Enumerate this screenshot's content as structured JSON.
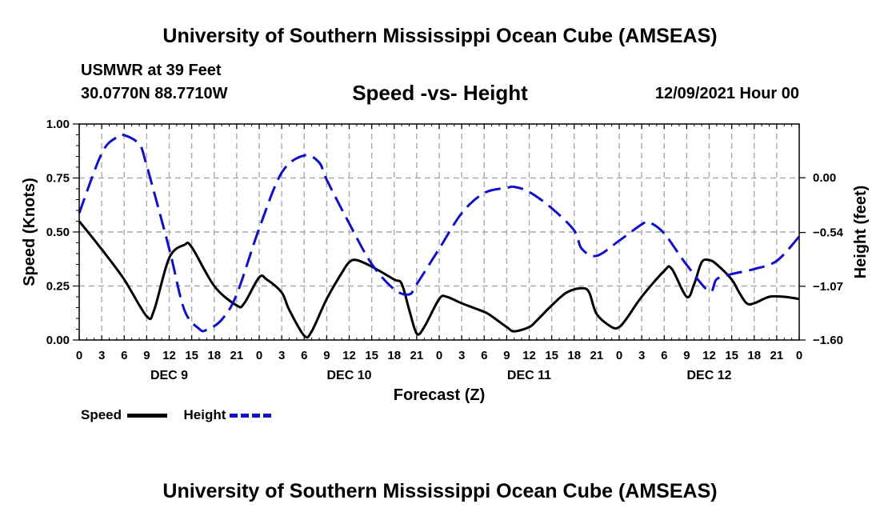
{
  "header": {
    "title_top": "University of Southern Mississippi Ocean Cube (AMSEAS)",
    "station": "USMWR at 39 Feet",
    "location": "30.0770N  88.7710W",
    "chart_title": "Speed -vs- Height",
    "datetime": "12/09/2021 Hour 00",
    "title_bottom": "University of Southern Mississippi Ocean Cube (AMSEAS)"
  },
  "legend": {
    "speed_label": "Speed",
    "height_label": "Height"
  },
  "colors": {
    "speed": "#000000",
    "height": "#1010c8",
    "grid": "#a9a9a9"
  },
  "chart_data": {
    "type": "line",
    "title": "Speed -vs- Height",
    "xlabel": "Forecast (Z)",
    "ylabel": "Speed (Knots)",
    "y2label": "Height (feet)",
    "xlim": [
      0,
      96
    ],
    "ylim": [
      0,
      1
    ],
    "y2lim": [
      -1.6,
      0.53
    ],
    "x_ticks": [
      0,
      3,
      6,
      9,
      12,
      15,
      18,
      21,
      24,
      27,
      30,
      33,
      36,
      39,
      42,
      45,
      48,
      51,
      54,
      57,
      60,
      63,
      66,
      69,
      72,
      75,
      78,
      81,
      84,
      87,
      90,
      93,
      96
    ],
    "x_tick_labels": [
      "0",
      "3",
      "6",
      "9",
      "12",
      "15",
      "18",
      "21",
      "0",
      "3",
      "6",
      "9",
      "12",
      "15",
      "18",
      "21",
      "0",
      "3",
      "6",
      "9",
      "12",
      "15",
      "18",
      "21",
      "0",
      "3",
      "6",
      "9",
      "12",
      "15",
      "18",
      "21",
      "0"
    ],
    "day_labels": [
      {
        "hour": 12,
        "label": "DEC 9"
      },
      {
        "hour": 36,
        "label": "DEC 10"
      },
      {
        "hour": 60,
        "label": "DEC 11"
      },
      {
        "hour": 84,
        "label": "DEC 12"
      }
    ],
    "y_ticks": [
      0,
      0.25,
      0.5,
      0.75,
      1.0
    ],
    "y_tick_labels": [
      "0.00",
      "0.25",
      "0.50",
      "0.75",
      "1.00"
    ],
    "y2_ticks": [
      -1.6,
      -1.07,
      -0.54,
      0.0
    ],
    "y2_tick_labels": [
      "−1.60",
      "−1.07",
      "−0.54",
      "0.00"
    ],
    "grid": true,
    "series": [
      {
        "name": "Speed",
        "axis": "left",
        "style": "solid",
        "points": [
          [
            0,
            0.55
          ],
          [
            3,
            0.42
          ],
          [
            6,
            0.28
          ],
          [
            9,
            0.11
          ],
          [
            10,
            0.14
          ],
          [
            12,
            0.38
          ],
          [
            14,
            0.44
          ],
          [
            15,
            0.43
          ],
          [
            18,
            0.25
          ],
          [
            21,
            0.16
          ],
          [
            22,
            0.17
          ],
          [
            24,
            0.29
          ],
          [
            25,
            0.28
          ],
          [
            27,
            0.22
          ],
          [
            28,
            0.14
          ],
          [
            30,
            0.02
          ],
          [
            31,
            0.04
          ],
          [
            33,
            0.19
          ],
          [
            35,
            0.31
          ],
          [
            36,
            0.36
          ],
          [
            37,
            0.37
          ],
          [
            39,
            0.34
          ],
          [
            42,
            0.28
          ],
          [
            43,
            0.26
          ],
          [
            44,
            0.14
          ],
          [
            45,
            0.03
          ],
          [
            46,
            0.06
          ],
          [
            48,
            0.19
          ],
          [
            49,
            0.2
          ],
          [
            51,
            0.17
          ],
          [
            54,
            0.13
          ],
          [
            55,
            0.11
          ],
          [
            57,
            0.06
          ],
          [
            58,
            0.04
          ],
          [
            60,
            0.06
          ],
          [
            61,
            0.09
          ],
          [
            63,
            0.16
          ],
          [
            65,
            0.22
          ],
          [
            67,
            0.24
          ],
          [
            68,
            0.22
          ],
          [
            69,
            0.12
          ],
          [
            71,
            0.06
          ],
          [
            72,
            0.06
          ],
          [
            73,
            0.1
          ],
          [
            75,
            0.2
          ],
          [
            78,
            0.32
          ],
          [
            79,
            0.33
          ],
          [
            81,
            0.2
          ],
          [
            82,
            0.26
          ],
          [
            83,
            0.36
          ],
          [
            84,
            0.37
          ],
          [
            85,
            0.35
          ],
          [
            87,
            0.28
          ],
          [
            88,
            0.22
          ],
          [
            89,
            0.17
          ],
          [
            90,
            0.17
          ],
          [
            92,
            0.2
          ],
          [
            94,
            0.2
          ],
          [
            96,
            0.19
          ]
        ]
      },
      {
        "name": "Height",
        "axis": "right",
        "style": "dashed",
        "points": [
          [
            0,
            -0.35
          ],
          [
            3,
            0.24
          ],
          [
            5,
            0.4
          ],
          [
            6,
            0.42
          ],
          [
            8,
            0.33
          ],
          [
            9,
            0.12
          ],
          [
            12,
            -0.7
          ],
          [
            14,
            -1.3
          ],
          [
            16,
            -1.49
          ],
          [
            17,
            -1.5
          ],
          [
            19,
            -1.4
          ],
          [
            21,
            -1.15
          ],
          [
            24,
            -0.5
          ],
          [
            27,
            0.05
          ],
          [
            30,
            0.22
          ],
          [
            32,
            0.15
          ],
          [
            33,
            -0.02
          ],
          [
            36,
            -0.45
          ],
          [
            39,
            -0.85
          ],
          [
            42,
            -1.1
          ],
          [
            44,
            -1.15
          ],
          [
            45,
            -1.05
          ],
          [
            48,
            -0.7
          ],
          [
            51,
            -0.35
          ],
          [
            54,
            -0.15
          ],
          [
            57,
            -0.1
          ],
          [
            58,
            -0.09
          ],
          [
            60,
            -0.14
          ],
          [
            63,
            -0.3
          ],
          [
            66,
            -0.52
          ],
          [
            67,
            -0.7
          ],
          [
            69,
            -0.77
          ],
          [
            72,
            -0.62
          ],
          [
            75,
            -0.46
          ],
          [
            76,
            -0.44
          ],
          [
            78,
            -0.55
          ],
          [
            81,
            -0.86
          ],
          [
            84,
            -1.12
          ],
          [
            85,
            -1.0
          ],
          [
            87,
            -0.95
          ],
          [
            90,
            -0.9
          ],
          [
            93,
            -0.82
          ],
          [
            96,
            -0.58
          ]
        ]
      }
    ]
  }
}
